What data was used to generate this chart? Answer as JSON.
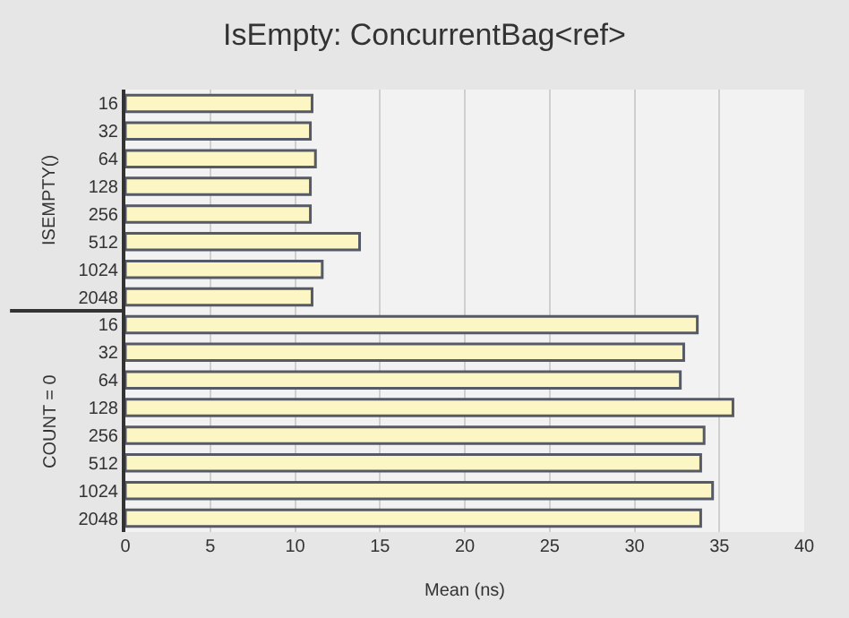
{
  "chart_data": {
    "type": "bar",
    "orientation": "horizontal",
    "title": "IsEmpty: ConcurrentBag<ref>",
    "xlabel": "Mean (ns)",
    "categories": [
      "16",
      "32",
      "64",
      "128",
      "256",
      "512",
      "1024",
      "2048",
      "16",
      "32",
      "64",
      "128",
      "256",
      "512",
      "1024",
      "2048"
    ],
    "values": [
      11.0,
      10.9,
      11.2,
      10.9,
      10.9,
      13.8,
      11.6,
      11.0,
      33.7,
      32.9,
      32.7,
      35.8,
      34.1,
      33.9,
      34.6,
      33.9
    ],
    "color": "#fcf6c4",
    "xlim": [
      0,
      40
    ],
    "xticks": [
      0,
      5,
      10,
      15,
      20,
      25,
      30,
      35,
      40
    ],
    "grid": "x",
    "legend": false,
    "annotations": [
      "ISEMPTY()",
      "COUNT = 0"
    ]
  }
}
